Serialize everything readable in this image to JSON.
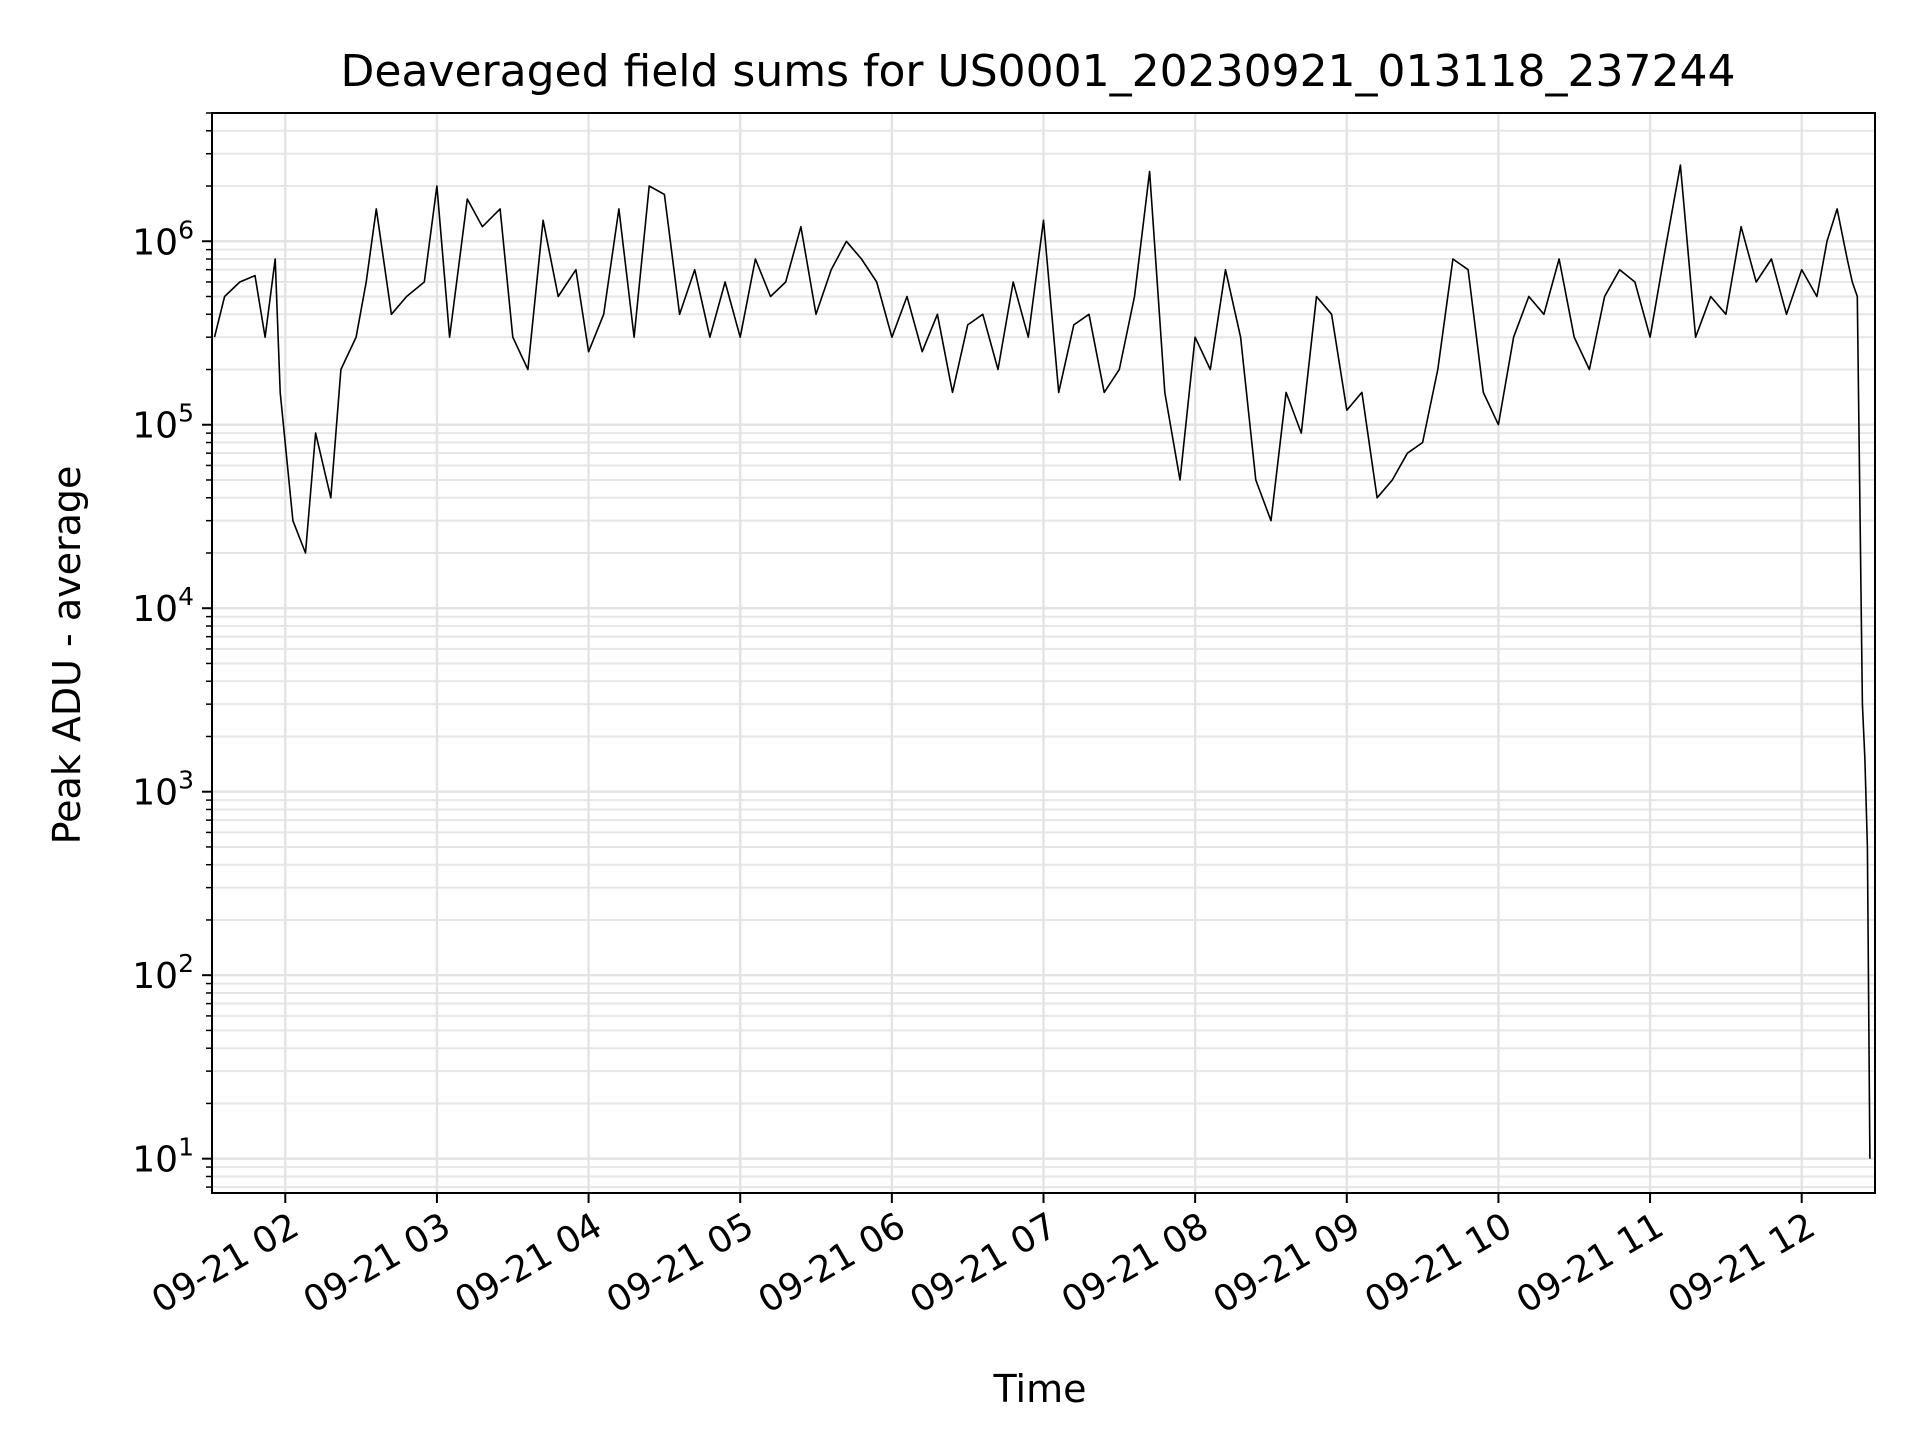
{
  "chart_data": {
    "type": "line",
    "title": "Deaveraged field sums for US0001_20230921_013118_237244",
    "xlabel": "Time",
    "ylabel": "Peak ADU - average",
    "y_scale": "log",
    "ylim": [
      6.5,
      5000000
    ],
    "xlim": [
      "2023-09-21 01:31",
      "2023-09-21 12:29"
    ],
    "grid": true,
    "x_ticks": [
      {
        "value": "2023-09-21 02:00",
        "label": "09-21 02"
      },
      {
        "value": "2023-09-21 03:00",
        "label": "09-21 03"
      },
      {
        "value": "2023-09-21 04:00",
        "label": "09-21 04"
      },
      {
        "value": "2023-09-21 05:00",
        "label": "09-21 05"
      },
      {
        "value": "2023-09-21 06:00",
        "label": "09-21 06"
      },
      {
        "value": "2023-09-21 07:00",
        "label": "09-21 07"
      },
      {
        "value": "2023-09-21 08:00",
        "label": "09-21 08"
      },
      {
        "value": "2023-09-21 09:00",
        "label": "09-21 09"
      },
      {
        "value": "2023-09-21 10:00",
        "label": "09-21 10"
      },
      {
        "value": "2023-09-21 11:00",
        "label": "09-21 11"
      },
      {
        "value": "2023-09-21 12:00",
        "label": "09-21 12"
      }
    ],
    "y_ticks": [
      {
        "value": 10,
        "base": "10",
        "exp": "1"
      },
      {
        "value": 100,
        "base": "10",
        "exp": "2"
      },
      {
        "value": 1000,
        "base": "10",
        "exp": "3"
      },
      {
        "value": 10000,
        "base": "10",
        "exp": "4"
      },
      {
        "value": 100000,
        "base": "10",
        "exp": "5"
      },
      {
        "value": 1000000,
        "base": "10",
        "exp": "6"
      }
    ],
    "line_color": "#000000",
    "series": [
      {
        "x": [
          "2023-09-21 01:32",
          "2023-09-21 01:36",
          "2023-09-21 01:42",
          "2023-09-21 01:48",
          "2023-09-21 01:52",
          "2023-09-21 01:56",
          "2023-09-21 01:58",
          "2023-09-21 02:03",
          "2023-09-21 02:08",
          "2023-09-21 02:12",
          "2023-09-21 02:18",
          "2023-09-21 02:22",
          "2023-09-21 02:28",
          "2023-09-21 02:32",
          "2023-09-21 02:36",
          "2023-09-21 02:42",
          "2023-09-21 02:48",
          "2023-09-21 02:55",
          "2023-09-21 03:00",
          "2023-09-21 03:05",
          "2023-09-21 03:12",
          "2023-09-21 03:18",
          "2023-09-21 03:25",
          "2023-09-21 03:30",
          "2023-09-21 03:36",
          "2023-09-21 03:42",
          "2023-09-21 03:48",
          "2023-09-21 03:55",
          "2023-09-21 04:00",
          "2023-09-21 04:06",
          "2023-09-21 04:12",
          "2023-09-21 04:18",
          "2023-09-21 04:24",
          "2023-09-21 04:30",
          "2023-09-21 04:36",
          "2023-09-21 04:42",
          "2023-09-21 04:48",
          "2023-09-21 04:54",
          "2023-09-21 05:00",
          "2023-09-21 05:06",
          "2023-09-21 05:12",
          "2023-09-21 05:18",
          "2023-09-21 05:24",
          "2023-09-21 05:30",
          "2023-09-21 05:36",
          "2023-09-21 05:42",
          "2023-09-21 05:48",
          "2023-09-21 05:54",
          "2023-09-21 06:00",
          "2023-09-21 06:06",
          "2023-09-21 06:12",
          "2023-09-21 06:18",
          "2023-09-21 06:24",
          "2023-09-21 06:30",
          "2023-09-21 06:36",
          "2023-09-21 06:42",
          "2023-09-21 06:48",
          "2023-09-21 06:54",
          "2023-09-21 07:00",
          "2023-09-21 07:06",
          "2023-09-21 07:12",
          "2023-09-21 07:18",
          "2023-09-21 07:24",
          "2023-09-21 07:30",
          "2023-09-21 07:36",
          "2023-09-21 07:42",
          "2023-09-21 07:48",
          "2023-09-21 07:54",
          "2023-09-21 08:00",
          "2023-09-21 08:06",
          "2023-09-21 08:12",
          "2023-09-21 08:18",
          "2023-09-21 08:24",
          "2023-09-21 08:30",
          "2023-09-21 08:36",
          "2023-09-21 08:42",
          "2023-09-21 08:48",
          "2023-09-21 08:54",
          "2023-09-21 09:00",
          "2023-09-21 09:06",
          "2023-09-21 09:12",
          "2023-09-21 09:18",
          "2023-09-21 09:24",
          "2023-09-21 09:30",
          "2023-09-21 09:36",
          "2023-09-21 09:42",
          "2023-09-21 09:48",
          "2023-09-21 09:54",
          "2023-09-21 10:00",
          "2023-09-21 10:06",
          "2023-09-21 10:12",
          "2023-09-21 10:18",
          "2023-09-21 10:24",
          "2023-09-21 10:30",
          "2023-09-21 10:36",
          "2023-09-21 10:42",
          "2023-09-21 10:48",
          "2023-09-21 10:54",
          "2023-09-21 11:00",
          "2023-09-21 11:06",
          "2023-09-21 11:12",
          "2023-09-21 11:18",
          "2023-09-21 11:24",
          "2023-09-21 11:30",
          "2023-09-21 11:36",
          "2023-09-21 11:42",
          "2023-09-21 11:48",
          "2023-09-21 11:54",
          "2023-09-21 12:00",
          "2023-09-21 12:06",
          "2023-09-21 12:10",
          "2023-09-21 12:14",
          "2023-09-21 12:18",
          "2023-09-21 12:20",
          "2023-09-21 12:22",
          "2023-09-21 12:24",
          "2023-09-21 12:25",
          "2023-09-21 12:26",
          "2023-09-21 12:27"
        ],
        "values": [
          300000,
          500000,
          600000,
          650000,
          300000,
          800000,
          150000,
          30000,
          20000,
          90000,
          40000,
          200000,
          300000,
          600000,
          1500000,
          400000,
          500000,
          600000,
          2000000,
          300000,
          1700000,
          1200000,
          1500000,
          300000,
          200000,
          1300000,
          500000,
          700000,
          250000,
          400000,
          1500000,
          300000,
          2000000,
          1800000,
          400000,
          700000,
          300000,
          600000,
          300000,
          800000,
          500000,
          600000,
          1200000,
          400000,
          700000,
          1000000,
          800000,
          600000,
          300000,
          500000,
          250000,
          400000,
          150000,
          350000,
          400000,
          200000,
          600000,
          300000,
          1300000,
          150000,
          350000,
          400000,
          150000,
          200000,
          500000,
          2400000,
          150000,
          50000,
          300000,
          200000,
          700000,
          300000,
          50000,
          30000,
          150000,
          90000,
          500000,
          400000,
          120000,
          150000,
          40000,
          50000,
          70000,
          80000,
          200000,
          800000,
          700000,
          150000,
          100000,
          300000,
          500000,
          400000,
          800000,
          300000,
          200000,
          500000,
          700000,
          600000,
          300000,
          900000,
          2600000,
          300000,
          500000,
          400000,
          1200000,
          600000,
          800000,
          400000,
          700000,
          500000,
          1000000,
          1500000,
          800000,
          600000,
          500000,
          3000,
          1500,
          500,
          10
        ]
      }
    ]
  }
}
